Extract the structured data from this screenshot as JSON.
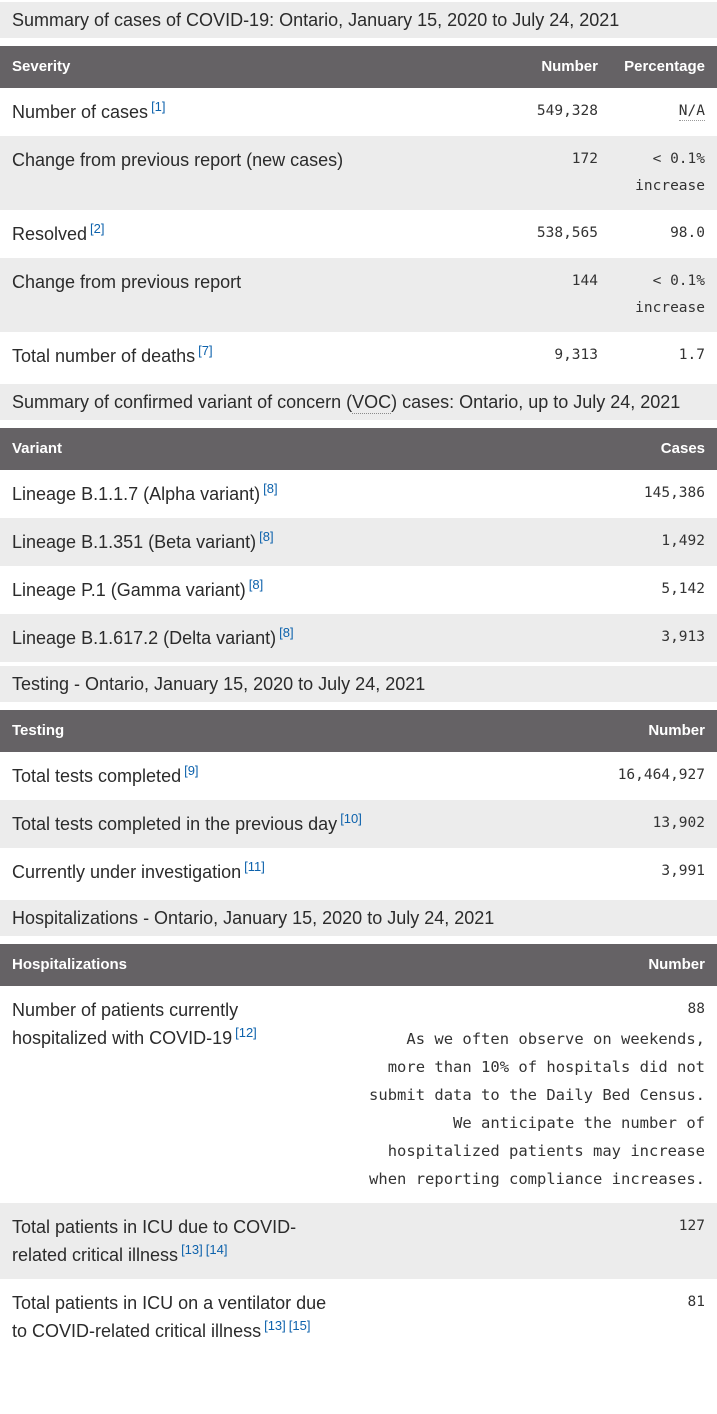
{
  "colors": {
    "header_bg": "#656265",
    "band_bg": "#ececec",
    "link_blue": "#0d62ac",
    "text": "#2b2b2b"
  },
  "cases": {
    "title": "Summary of cases of COVID-19: Ontario, January 15, 2020 to July 24, 2021",
    "columns": {
      "c1": "Severity",
      "c2": "Number",
      "c3": "Percentage"
    },
    "rows": [
      {
        "label": "Number of cases",
        "fn1": "[1]",
        "number": "549,328",
        "pct": "N/A"
      },
      {
        "label": "Change from previous report (new cases)",
        "number": "172",
        "pct": "< 0.1% increase"
      },
      {
        "label": "Resolved",
        "fn1": "[2]",
        "number": "538,565",
        "pct": "98.0"
      },
      {
        "label": "Change from previous report",
        "number": "144",
        "pct": "< 0.1% increase"
      },
      {
        "label": "Total number of deaths",
        "fn1": "[7]",
        "number": "9,313",
        "pct": "1.7"
      }
    ]
  },
  "voc": {
    "title_pre": "Summary of confirmed variant of concern (",
    "title_abbr": "VOC",
    "title_post": ") cases: Ontario, up to July 24, 2021",
    "columns": {
      "c1": "Variant",
      "c2": "Cases"
    },
    "rows": [
      {
        "label": "Lineage B.1.1.7 (Alpha variant)",
        "fn1": "[8]",
        "value": "145,386"
      },
      {
        "label": "Lineage B.1.351 (Beta variant)",
        "fn1": "[8]",
        "value": "1,492"
      },
      {
        "label": "Lineage P.1 (Gamma variant)",
        "fn1": "[8]",
        "value": "5,142"
      },
      {
        "label": "Lineage B.1.617.2 (Delta variant)",
        "fn1": "[8]",
        "value": "3,913"
      }
    ]
  },
  "testing": {
    "title": "Testing - Ontario, January 15, 2020 to July 24, 2021",
    "columns": {
      "c1": "Testing",
      "c2": "Number"
    },
    "rows": [
      {
        "label": "Total tests completed",
        "fn1": "[9]",
        "value": "16,464,927"
      },
      {
        "label": "Total tests completed in the previous day",
        "fn1": "[10]",
        "value": "13,902"
      },
      {
        "label": "Currently under investigation",
        "fn1": "[11]",
        "value": "3,991"
      }
    ]
  },
  "hosp": {
    "title": "Hospitalizations - Ontario, January 15, 2020 to July 24, 2021",
    "columns": {
      "c1": "Hospitalizations",
      "c2": "Number"
    },
    "rows": [
      {
        "label": "Number of patients currently hospitalized with COVID-19",
        "fn1": "[12]",
        "value": "88",
        "note": "As we often observe on weekends, more than 10% of hospitals did not submit data to the Daily Bed Census. We anticipate the number of hospitalized patients may increase when reporting compliance increases."
      },
      {
        "label": "Total patients in ICU due to COVID-related critical illness",
        "fn1": "[13]",
        "fn2": "[14]",
        "value": "127"
      },
      {
        "label": "Total patients in ICU on a ventilator due to COVID-related critical illness",
        "fn1": "[13]",
        "fn2": "[15]",
        "value": "81"
      }
    ]
  }
}
